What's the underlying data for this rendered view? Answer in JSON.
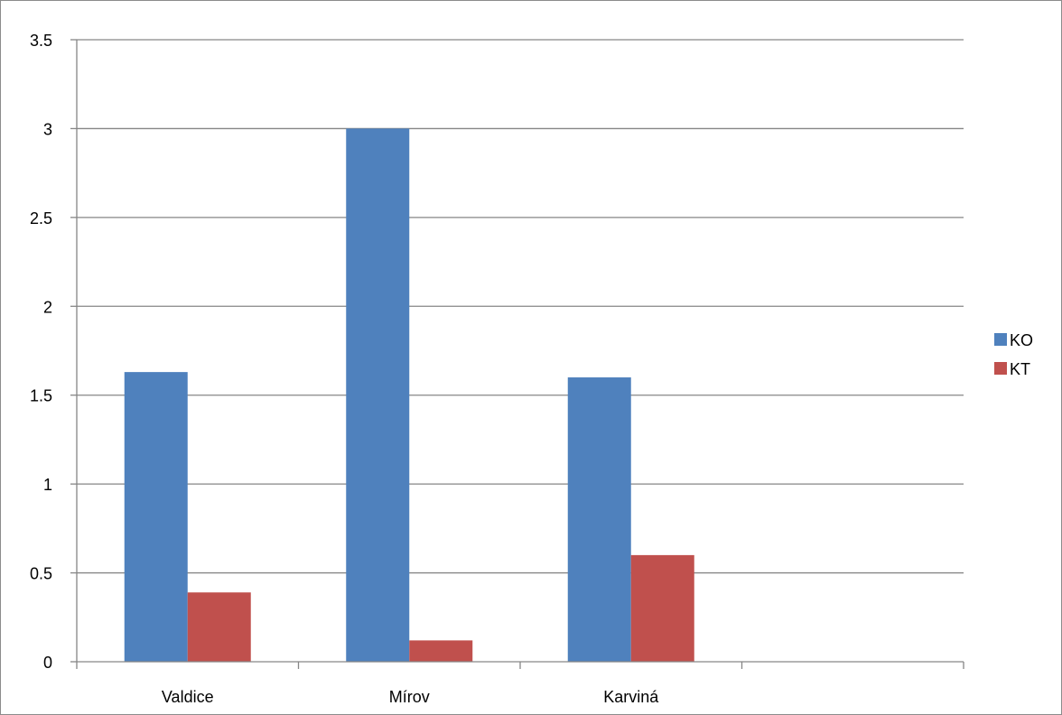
{
  "chart_data": {
    "type": "bar",
    "categories": [
      "Valdice",
      "Mírov",
      "Karviná",
      ""
    ],
    "series": [
      {
        "name": "KO",
        "color": "#4F81BD",
        "values": [
          1.63,
          3.0,
          1.6,
          null
        ]
      },
      {
        "name": "KT",
        "color": "#C0504D",
        "values": [
          0.39,
          0.12,
          0.6,
          null
        ]
      }
    ],
    "y_ticks": [
      "0",
      "0.5",
      "1",
      "1.5",
      "2",
      "2.5",
      "3",
      "3.5"
    ],
    "ylim": [
      0,
      3.5
    ],
    "grid": true,
    "legend_position": "right",
    "title": "",
    "xlabel": "",
    "ylabel": ""
  }
}
